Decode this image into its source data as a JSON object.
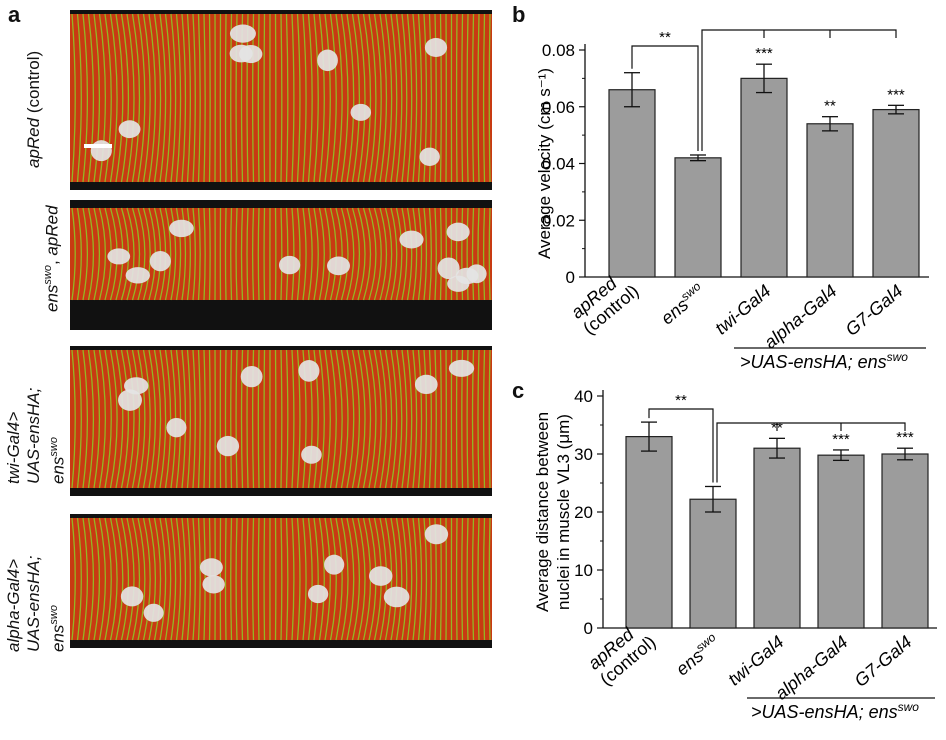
{
  "figure": {
    "panel_labels": [
      "a",
      "b",
      "c"
    ],
    "micrographs": [
      {
        "label_italic": "apRed",
        "label_plain": " (control)",
        "label_sup": "",
        "label_plain2": ""
      },
      {
        "label_italic": "ens",
        "label_sup": "swo",
        "label_plain": ", ",
        "label_italic2": "apRed"
      },
      {
        "lines": [
          "twi-Gal4>",
          "UAS-ensHA;",
          "ens"
        ],
        "sup": "swo"
      },
      {
        "lines": [
          "alpha-Gal4>",
          "UAS-ensHA;",
          "ens"
        ],
        "sup": "swo"
      }
    ],
    "colors": {
      "bar_fill": "#9c9c9c",
      "bar_stroke": "#222222",
      "muscle_red": "#c83a12",
      "muscle_green": "#8ccc28",
      "nucleus": "#e4e4e4"
    },
    "rescue_group_label": ">UAS-ensHA; ens",
    "rescue_group_sup": "swo"
  },
  "chart_data": [
    {
      "type": "bar",
      "panel": "b",
      "ylabel": "Average velocity (cm s⁻¹)",
      "ylim": [
        0,
        0.08
      ],
      "yticks": [
        "0",
        "0.02",
        "0.04",
        "0.06",
        "0.08"
      ],
      "categories": [
        "apRed (control)",
        "ens swo",
        "twi-Gal4",
        "alpha-Gal4",
        "G7-Gal4"
      ],
      "category_lines": [
        [
          "apRed",
          "(control)"
        ],
        [
          "ens",
          "swo"
        ],
        [
          "twi-Gal4"
        ],
        [
          "alpha-Gal4"
        ],
        [
          "G7-Gal4"
        ]
      ],
      "values": [
        0.066,
        0.042,
        0.07,
        0.054,
        0.059
      ],
      "errors": [
        0.006,
        0.001,
        0.005,
        0.0025,
        0.0015
      ],
      "significance": [
        "",
        "",
        "***",
        "**",
        "***"
      ],
      "bracket_label": "**"
    },
    {
      "type": "bar",
      "panel": "c",
      "ylabel_lines": [
        "Average distance between",
        "nuclei in muscle VL3 (μm)"
      ],
      "ylim": [
        0,
        40
      ],
      "yticks": [
        "0",
        "10",
        "20",
        "30",
        "40"
      ],
      "categories": [
        "apRed (control)",
        "ens swo",
        "twi-Gal4",
        "alpha-Gal4",
        "G7-Gal4"
      ],
      "category_lines": [
        [
          "apRed",
          "(control)"
        ],
        [
          "ens",
          "swo"
        ],
        [
          "twi-Gal4"
        ],
        [
          "alpha-Gal4"
        ],
        [
          "G7-Gal4"
        ]
      ],
      "values": [
        33,
        22.2,
        31,
        29.8,
        30
      ],
      "errors": [
        2.5,
        2.2,
        1.7,
        0.9,
        1.0
      ],
      "significance": [
        "",
        "",
        "**",
        "***",
        "***"
      ],
      "bracket_label": "**"
    }
  ]
}
